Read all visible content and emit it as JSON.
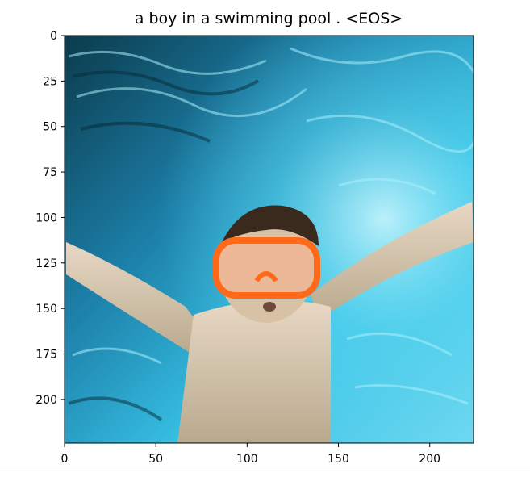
{
  "chart_data": {
    "type": "image",
    "title": "a boy in a swimming pool . <EOS>",
    "xlabel": "",
    "ylabel": "",
    "xlim": [
      0,
      224
    ],
    "ylim": [
      224,
      0
    ],
    "x_ticks": [
      0,
      50,
      100,
      150,
      200
    ],
    "y_ticks": [
      0,
      25,
      50,
      75,
      100,
      125,
      150,
      175,
      200
    ],
    "grid": false,
    "image_content": "underwater-boy-with-orange-goggles"
  },
  "colors": {
    "water_deep": "#0b3b4c",
    "water_mid": "#1c89b8",
    "water_light": "#4fd3ee",
    "water_bright": "#b8f2fb",
    "skin": "#d9c8b0",
    "goggles": "#ff6a1a",
    "hair": "#3a2a1e"
  }
}
